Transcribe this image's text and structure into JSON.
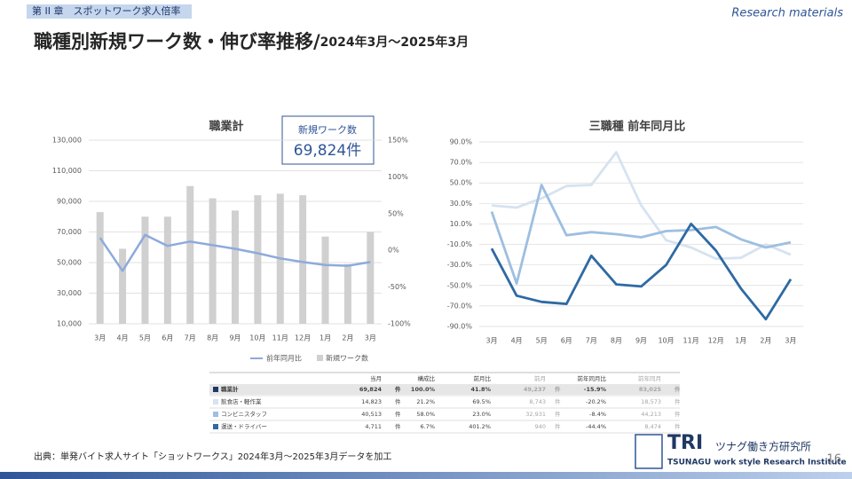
{
  "header": {
    "chapter": "第 II 章　スポットワーク求人倍率",
    "tag": "Research materials",
    "title": "職種別新規ワーク数・伸び率推移/",
    "title_period": "2024年3月～2025年3月"
  },
  "callout": {
    "label": "新規ワーク数",
    "value": "69,824件"
  },
  "chart_data": [
    {
      "type": "combo",
      "title": "職業計",
      "categories": [
        "3月",
        "4月",
        "5月",
        "6月",
        "7月",
        "8月",
        "9月",
        "10月",
        "11月",
        "12月",
        "1月",
        "2月",
        "3月"
      ],
      "series": [
        {
          "name": "前年同月比",
          "type": "line",
          "axis": "y2",
          "color": "#8eaadb",
          "values": [
            17,
            -28,
            21,
            6,
            12,
            7,
            2,
            -4,
            -11,
            -16,
            -20,
            -21,
            -16
          ]
        },
        {
          "name": "新規ワーク数",
          "type": "bar",
          "color": "#d0d0d0",
          "values": [
            83000,
            59000,
            80000,
            80000,
            100000,
            92000,
            84000,
            94000,
            95000,
            94000,
            67000,
            49000,
            70000
          ]
        }
      ],
      "ylim": [
        10000,
        130000
      ],
      "yticks": [
        {
          "value": 10000,
          "label": "10,000"
        },
        {
          "value": 30000,
          "label": "30,000"
        },
        {
          "value": 50000,
          "label": "50,000"
        },
        {
          "value": 70000,
          "label": "70,000"
        },
        {
          "value": 90000,
          "label": "90,000"
        },
        {
          "value": 110000,
          "label": "110,000"
        },
        {
          "value": 130000,
          "label": "130,000"
        }
      ],
      "y2lim": [
        -100,
        150
      ],
      "y2ticks": [
        {
          "value": -100,
          "label": "-100%"
        },
        {
          "value": -50,
          "label": "-50%"
        },
        {
          "value": 0,
          "label": "0%"
        },
        {
          "value": 50,
          "label": "50%"
        },
        {
          "value": 100,
          "label": "100%"
        },
        {
          "value": 150,
          "label": "150%"
        }
      ],
      "grid": true,
      "legend": "bottom"
    },
    {
      "type": "line",
      "title": "三職種 前年同月比",
      "categories": [
        "3月",
        "4月",
        "5月",
        "6月",
        "7月",
        "8月",
        "9月",
        "10月",
        "11月",
        "12月",
        "1月",
        "2月",
        "3月"
      ],
      "series": [
        {
          "color": "#d6e3f0",
          "values": [
            28,
            26,
            35,
            47,
            48,
            80,
            28,
            -6,
            -13,
            -24,
            -23,
            -10,
            -20
          ]
        },
        {
          "color": "#9dbfe0",
          "values": [
            22,
            -48,
            48,
            -1,
            2,
            0,
            -3,
            3,
            4,
            7,
            -5,
            -13,
            -8
          ]
        },
        {
          "color": "#2e6aa3",
          "values": [
            -14,
            -60,
            -66,
            -68,
            -21,
            -49,
            -51,
            -30,
            10,
            -16,
            -53,
            -83,
            -44
          ]
        }
      ],
      "ylim": [
        -90,
        90
      ],
      "yticks": [
        {
          "value": -90,
          "label": "-90.0%"
        },
        {
          "value": -70,
          "label": "-70.0%"
        },
        {
          "value": -50,
          "label": "-50.0%"
        },
        {
          "value": -30,
          "label": "-30.0%"
        },
        {
          "value": -10,
          "label": "-10.0%"
        },
        {
          "value": 10,
          "label": "10.0%"
        },
        {
          "value": 30,
          "label": "30.0%"
        },
        {
          "value": 50,
          "label": "50.0%"
        },
        {
          "value": 70,
          "label": "70.0%"
        },
        {
          "value": 90,
          "label": "90.0%"
        }
      ],
      "grid": true
    }
  ],
  "table": {
    "columns": [
      "当月",
      "構成比",
      "前月比",
      "前月",
      "前年同月比",
      "前年同月"
    ],
    "marker_colors": [
      "#1f3864",
      "#d6e3f0",
      "#9dbfe0",
      "#2e6aa3"
    ],
    "rows": [
      [
        "職業計",
        "69,824",
        "件",
        "100.0%",
        "41.8%",
        "49,237",
        "件",
        "-15.9%",
        "83,025",
        "件"
      ],
      [
        "飲食店・軽作業",
        "14,823",
        "件",
        "21.2%",
        "69.5%",
        "8,743",
        "件",
        "-20.2%",
        "18,573",
        "件"
      ],
      [
        "コンビニスタッフ",
        "40,513",
        "件",
        "58.0%",
        "23.0%",
        "32,931",
        "件",
        "-8.4%",
        "44,213",
        "件"
      ],
      [
        "運送・ドライバー",
        "4,711",
        "件",
        "6.7%",
        "401.2%",
        "940",
        "件",
        "-44.4%",
        "8,474",
        "件"
      ]
    ]
  },
  "footer": {
    "source": "出典：単発バイト求人サイト「ショットワークス」2024年3月～2025年3月データを加工",
    "logo_mark": "TRI",
    "logo_name": "ツナグ働き方研究所",
    "logo_sub": "TSUNAGU work style Research Institute",
    "page": "16"
  }
}
